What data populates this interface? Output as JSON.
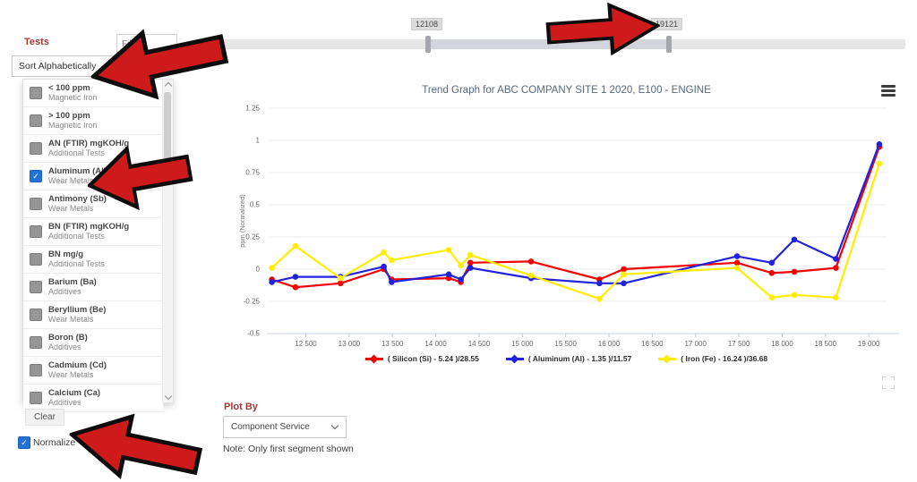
{
  "left_panel": {
    "tests_label": "Tests",
    "filter_placeholder": "Filter",
    "sort_dropdown_value": "Sort Alphabetically",
    "clear_button": "Clear",
    "normalize_label": "Normalize",
    "normalize_checked": true,
    "tests": [
      {
        "name": "< 100 ppm",
        "category": "Magnetic Iron",
        "checked": false
      },
      {
        "name": "> 100 ppm",
        "category": "Magnetic Iron",
        "checked": false
      },
      {
        "name": "AN (FTIR) mgKOH/g",
        "category": "Additional Tests",
        "checked": false
      },
      {
        "name": "Aluminum (Al)",
        "category": "Wear Metals",
        "checked": true
      },
      {
        "name": "Antimony (Sb)",
        "category": "Wear Metals",
        "checked": false
      },
      {
        "name": "BN (FTIR) mgKOH/g",
        "category": "Additional Tests",
        "checked": false
      },
      {
        "name": "BN mg/g",
        "category": "Additional Tests",
        "checked": false
      },
      {
        "name": "Barium (Ba)",
        "category": "Additives",
        "checked": false
      },
      {
        "name": "Beryllium (Be)",
        "category": "Wear Metals",
        "checked": false
      },
      {
        "name": "Boron (B)",
        "category": "Additives",
        "checked": false
      },
      {
        "name": "Cadmium (Cd)",
        "category": "Wear Metals",
        "checked": false
      },
      {
        "name": "Calcium (Ca)",
        "category": "Additives",
        "checked": false
      }
    ]
  },
  "range_slider": {
    "min_label": "12108",
    "max_label": "19121"
  },
  "chart_data": {
    "type": "line",
    "title": "Trend Graph for ABC COMPANY SITE 1 2020, E100 - ENGINE",
    "ylabel": "ppm (Normalized)",
    "xlim": [
      12050,
      19350
    ],
    "ylim": [
      -0.5,
      1.25
    ],
    "grid": true,
    "legend_position": "bottom",
    "yticks": [
      1.25,
      1,
      0.75,
      0.5,
      0.25,
      0,
      -0.25,
      -0.5
    ],
    "ytick_labels": [
      "1.25",
      "1",
      "0.75",
      "0.5",
      "0.25",
      "0",
      "-0.25",
      "-0.5"
    ],
    "xticks": [
      12500,
      13000,
      13500,
      14000,
      14500,
      15000,
      15500,
      16000,
      16500,
      17000,
      17500,
      18000,
      18500,
      19000
    ],
    "xtick_labels": [
      "12 500",
      "13 000",
      "13 500",
      "14 000",
      "14 500",
      "15 000",
      "15 500",
      "16 000",
      "16 500",
      "17 000",
      "17 500",
      "18 000",
      "18 500",
      "19 000"
    ],
    "x": [
      12108,
      12380,
      12900,
      13400,
      13490,
      14150,
      14290,
      14400,
      15100,
      15890,
      16170,
      17480,
      17880,
      18140,
      18620,
      19121
    ],
    "series": [
      {
        "name": "( Silicon (Si) - 5.24 )/28.55",
        "color": "#f40000",
        "values": [
          -0.08,
          -0.14,
          -0.11,
          0.0,
          -0.08,
          -0.07,
          -0.1,
          0.05,
          0.06,
          -0.08,
          0.0,
          0.05,
          -0.03,
          -0.02,
          0.01,
          0.95
        ]
      },
      {
        "name": "( Aluminum (Al) - 1.35 )/11.57",
        "color": "#2222dd",
        "values": [
          -0.1,
          -0.06,
          -0.06,
          0.02,
          -0.1,
          -0.04,
          -0.08,
          0.01,
          -0.07,
          -0.11,
          -0.11,
          0.1,
          0.05,
          0.23,
          0.08,
          0.97
        ]
      },
      {
        "name": "( Iron (Fe) - 16.24 )/36.68",
        "color": "#ffee00",
        "values": [
          0.01,
          0.18,
          -0.07,
          0.13,
          0.07,
          0.15,
          0.03,
          0.11,
          -0.05,
          -0.23,
          -0.04,
          0.01,
          -0.22,
          -0.2,
          -0.22,
          0.82
        ]
      }
    ]
  },
  "plot_by": {
    "label": "Plot By",
    "selected_value": "Component Service"
  },
  "note_text": "Note: Only first segment shown",
  "icons": {
    "menu": "hamburger-menu-icon",
    "expand": "expand-icon",
    "scroll_up": "chevron-up-icon",
    "scroll_down": "chevron-down-icon",
    "dropdown": "chevron-down-icon"
  },
  "colors": {
    "accent_red_label": "#a23939",
    "checkbox_checked_blue": "#2272d7",
    "annotation_arrow": "#ce1a1a",
    "slider_track": "#e6e6e6",
    "slider_range": "#d4d4dc"
  }
}
